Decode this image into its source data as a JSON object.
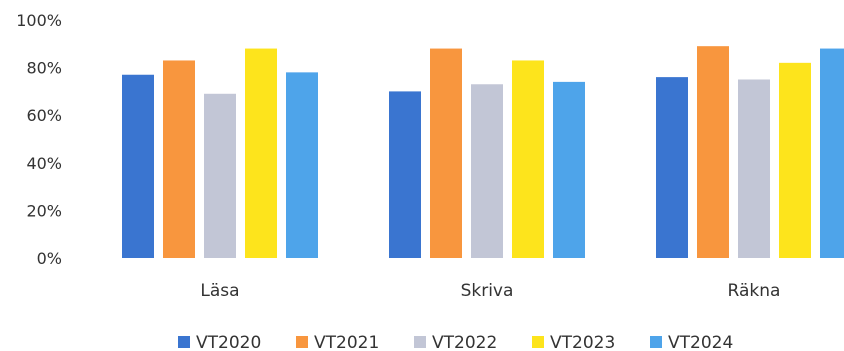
{
  "chart_data": {
    "type": "bar",
    "categories": [
      "Läsa",
      "Skriva",
      "Räkna"
    ],
    "series": [
      {
        "name": "VT2020",
        "values": [
          77,
          70,
          76
        ]
      },
      {
        "name": "VT2021",
        "values": [
          83,
          88,
          89
        ]
      },
      {
        "name": "VT2022",
        "values": [
          69,
          73,
          75
        ]
      },
      {
        "name": "VT2023",
        "values": [
          88,
          83,
          82
        ]
      },
      {
        "name": "VT2024",
        "values": [
          78,
          74,
          88
        ]
      }
    ],
    "yticks": [
      "0%",
      "20%",
      "40%",
      "60%",
      "80%",
      "100%"
    ],
    "ylim": [
      0,
      100
    ],
    "grid": false,
    "legend_position": "bottom",
    "colors": [
      "#3a75d0",
      "#f8963e",
      "#c2c6d6",
      "#fde41c",
      "#4ea4ea"
    ]
  }
}
